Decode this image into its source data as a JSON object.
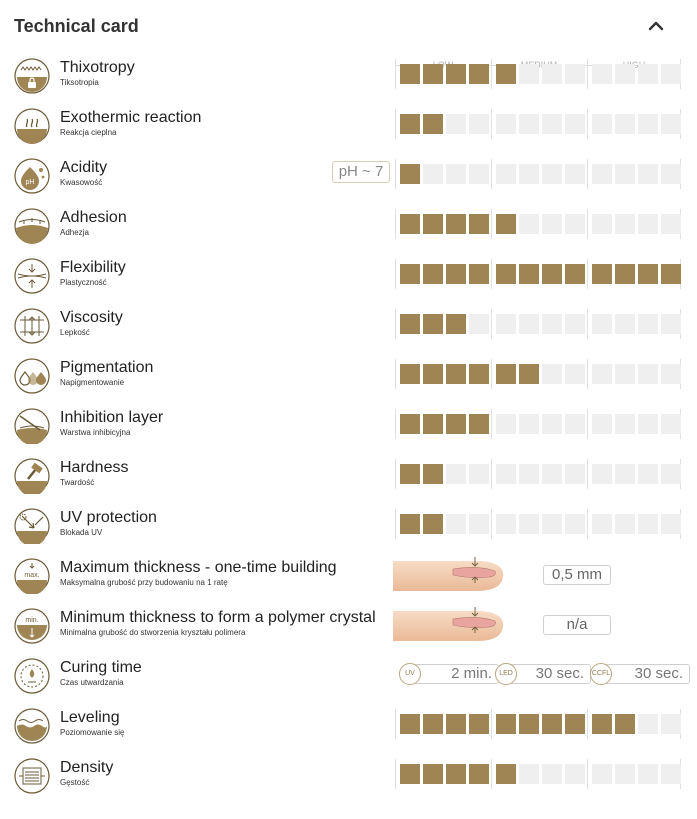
{
  "header": {
    "title": "Technical card"
  },
  "scale": {
    "low": "LOW",
    "medium": "MEDIUM",
    "high": "HIGH"
  },
  "colors": {
    "accent": "#9f8553",
    "empty": "#efefef"
  },
  "rows": [
    {
      "name": "Thixotropy",
      "sub": "Tiksotropia",
      "icon": "thixotropy-icon",
      "level": 5
    },
    {
      "name": "Exothermic reaction",
      "sub": "Reakcja cieplna",
      "icon": "exothermic-icon",
      "level": 2
    },
    {
      "name": "Acidity",
      "sub": "Kwasowość",
      "icon": "acidity-icon",
      "level": 1,
      "ph": "pH ~ 7"
    },
    {
      "name": "Adhesion",
      "sub": "Adhezja",
      "icon": "adhesion-icon",
      "level": 5
    },
    {
      "name": "Flexibility",
      "sub": "Plastyczność",
      "icon": "flexibility-icon",
      "level": 12
    },
    {
      "name": "Viscosity",
      "sub": "Lepkość",
      "icon": "viscosity-icon",
      "level": 3
    },
    {
      "name": "Pigmentation",
      "sub": "Napigmentowanie",
      "icon": "pigmentation-icon",
      "level": 6
    },
    {
      "name": "Inhibition layer",
      "sub": "Warstwa inhibicyjna",
      "icon": "inhibition-layer-icon",
      "level": 4
    },
    {
      "name": "Hardness",
      "sub": "Twardość",
      "icon": "hardness-icon",
      "level": 2
    },
    {
      "name": "UV protection",
      "sub": "Blokada UV",
      "icon": "uv-protection-icon",
      "level": 2
    },
    {
      "name": "Maximum thickness - one-time building",
      "sub": "Maksymalna grubość przy budowaniu na 1 ratę",
      "icon": "max-thickness-icon",
      "value": "0,5 mm"
    },
    {
      "name": "Minimum thickness to form a polymer crystal",
      "sub": "Minimalna grubość do stworzenia kryształu polimera",
      "icon": "min-thickness-icon",
      "value": "n/a"
    },
    {
      "name": "Curing time",
      "sub": "Czas utwardzania",
      "icon": "curing-time-icon",
      "curing": [
        {
          "lamp": "UV",
          "time": "2 min."
        },
        {
          "lamp": "LED",
          "time": "30 sec."
        },
        {
          "lamp": "CCFL",
          "time": "30 sec."
        }
      ]
    },
    {
      "name": "Leveling",
      "sub": "Poziomowanie się",
      "icon": "leveling-icon",
      "level": 10
    },
    {
      "name": "Density",
      "sub": "Gęstość",
      "icon": "density-icon",
      "level": 5
    }
  ]
}
